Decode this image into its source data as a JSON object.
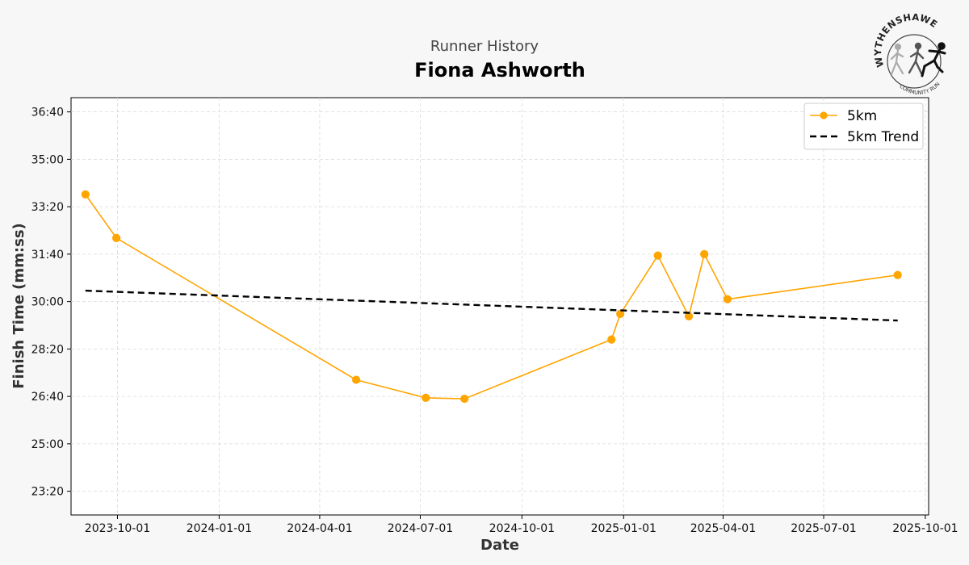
{
  "header": {
    "suptitle": "Runner History",
    "title": "Fiona Ashworth"
  },
  "logo": {
    "name": "WYTHENSHAWE",
    "subtitle": "COMMUNITY RUN"
  },
  "chart_data": {
    "type": "line",
    "xlabel": "Date",
    "ylabel": "Finish Time (mm:ss)",
    "x_ticks": [
      "2023-10-01",
      "2024-01-01",
      "2024-04-01",
      "2024-07-01",
      "2024-10-01",
      "2025-01-01",
      "2025-04-01",
      "2025-07-01",
      "2025-10-01"
    ],
    "y_ticks": [
      "23:20",
      "25:00",
      "26:40",
      "28:20",
      "30:00",
      "31:40",
      "33:20",
      "35:00",
      "36:40"
    ],
    "xlim": [
      "2023-08-20",
      "2025-10-04"
    ],
    "ylim": [
      "22:30",
      "37:10"
    ],
    "grid": true,
    "legend_position": "top-right",
    "series": [
      {
        "name": "5km",
        "style": "line-marker",
        "color": "#FFA500",
        "points": [
          {
            "x": "2023-09-02",
            "y": "33:46"
          },
          {
            "x": "2023-09-30",
            "y": "32:14"
          },
          {
            "x": "2024-05-04",
            "y": "27:15"
          },
          {
            "x": "2024-07-06",
            "y": "26:37"
          },
          {
            "x": "2024-08-10",
            "y": "26:35"
          },
          {
            "x": "2024-12-21",
            "y": "28:40"
          },
          {
            "x": "2024-12-29",
            "y": "29:34"
          },
          {
            "x": "2025-02-01",
            "y": "31:37"
          },
          {
            "x": "2025-03-01",
            "y": "29:29"
          },
          {
            "x": "2025-03-15",
            "y": "31:40"
          },
          {
            "x": "2025-04-05",
            "y": "30:05"
          },
          {
            "x": "2025-09-06",
            "y": "30:56"
          }
        ]
      },
      {
        "name": "5km Trend",
        "style": "dashed",
        "color": "#000000",
        "points": [
          {
            "x": "2023-09-02",
            "y": "30:23"
          },
          {
            "x": "2025-09-06",
            "y": "29:20"
          }
        ]
      }
    ]
  }
}
